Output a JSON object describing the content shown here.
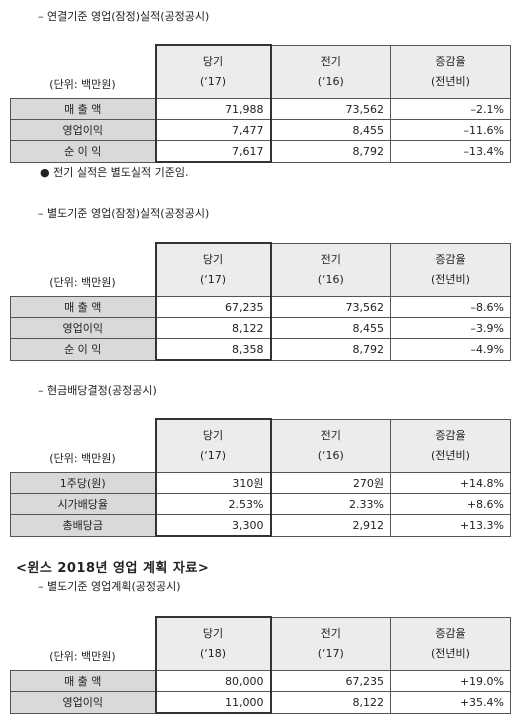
{
  "sections": [
    {
      "heading": "–  연결기준 영업(잠정)실적(공정공시)",
      "table": {
        "unit": "(단위: 백만원)",
        "columns": [
          {
            "label": "당기",
            "period": "(‘17)"
          },
          {
            "label": "전기",
            "period": "(‘16)"
          },
          {
            "label": "증감율",
            "period": "(전년비)"
          }
        ],
        "rows": [
          [
            "매 출 액",
            "71,988",
            "73,562",
            "–2.1%"
          ],
          [
            "영업이익",
            "7,477",
            "8,455",
            "–11.6%"
          ],
          [
            "순 이 익",
            "7,617",
            "8,792",
            "–13.4%"
          ]
        ]
      },
      "note": "●  전기 실적은 별도실적 기준임."
    },
    {
      "heading": "–  별도기준 영업(잠정)실적(공정공시)",
      "table": {
        "unit": "(단위: 백만원)",
        "columns": [
          {
            "label": "당기",
            "period": "(‘17)"
          },
          {
            "label": "전기",
            "period": "(‘16)"
          },
          {
            "label": "증감율",
            "period": "(전년비)"
          }
        ],
        "rows": [
          [
            "매 출 액",
            "67,235",
            "73,562",
            "–8.6%"
          ],
          [
            "영업이익",
            "8,122",
            "8,455",
            "–3.9%"
          ],
          [
            "순 이 익",
            "8,358",
            "8,792",
            "–4.9%"
          ]
        ]
      }
    },
    {
      "heading": "–  현금배당결정(공정공시)",
      "table": {
        "unit": "(단위: 백만원)",
        "columns": [
          {
            "label": "당기",
            "period": "(‘17)"
          },
          {
            "label": "전기",
            "period": "(‘16)"
          },
          {
            "label": "증감율",
            "period": "(전년비)"
          }
        ],
        "rows": [
          [
            "1주당(원)",
            "310원",
            "270원",
            "+14.8%"
          ],
          [
            "시가배당율",
            "2.53%",
            "2.33%",
            "+8.6%"
          ],
          [
            "총배당금",
            "3,300",
            "2,912",
            "+13.3%"
          ]
        ]
      }
    },
    {
      "heading": "–  별도기준 영업계획(공정공시)",
      "table": {
        "unit": "(단위: 백만원)",
        "columns": [
          {
            "label": "당기",
            "period": "(‘18)"
          },
          {
            "label": "전기",
            "period": "(‘17)"
          },
          {
            "label": "증감율",
            "period": "(전년비)"
          }
        ],
        "rows": [
          [
            "매 출 액",
            "80,000",
            "67,235",
            "+19.0%"
          ],
          [
            "영업이익",
            "11,000",
            "8,122",
            "+35.4%"
          ]
        ]
      }
    }
  ],
  "plan_title": "<윈스 2018년 영업 계획 자료>"
}
